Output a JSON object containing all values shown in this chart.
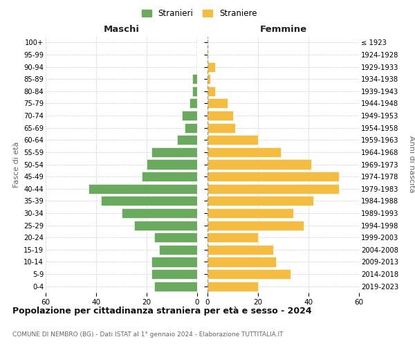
{
  "age_groups": [
    "0-4",
    "5-9",
    "10-14",
    "15-19",
    "20-24",
    "25-29",
    "30-34",
    "35-39",
    "40-44",
    "45-49",
    "50-54",
    "55-59",
    "60-64",
    "65-69",
    "70-74",
    "75-79",
    "80-84",
    "85-89",
    "90-94",
    "95-99",
    "100+"
  ],
  "birth_years": [
    "2019-2023",
    "2014-2018",
    "2009-2013",
    "2004-2008",
    "1999-2003",
    "1994-1998",
    "1989-1993",
    "1984-1988",
    "1979-1983",
    "1974-1978",
    "1969-1973",
    "1964-1968",
    "1959-1963",
    "1954-1958",
    "1949-1953",
    "1944-1948",
    "1939-1943",
    "1934-1938",
    "1929-1933",
    "1924-1928",
    "≤ 1923"
  ],
  "males": [
    17,
    18,
    18,
    15,
    17,
    25,
    30,
    38,
    43,
    22,
    20,
    18,
    8,
    5,
    6,
    3,
    2,
    2,
    0,
    0,
    0
  ],
  "females": [
    20,
    33,
    27,
    26,
    20,
    38,
    34,
    42,
    52,
    52,
    41,
    29,
    20,
    11,
    10,
    8,
    3,
    1,
    3,
    0,
    0
  ],
  "male_color": "#6aaa5e",
  "female_color": "#f5bc42",
  "background_color": "#ffffff",
  "grid_color": "#cccccc",
  "title": "Popolazione per cittadinanza straniera per età e sesso - 2024",
  "subtitle": "COMUNE DI NEMBRO (BG) - Dati ISTAT al 1° gennaio 2024 - Elaborazione TUTTITALIA.IT",
  "left_label": "Maschi",
  "right_label": "Femmine",
  "y_label": "Fasce di età",
  "right_y_label": "Anni di nascita",
  "legend_male": "Stranieri",
  "legend_female": "Straniere",
  "xlim": 60,
  "bar_height": 0.8
}
